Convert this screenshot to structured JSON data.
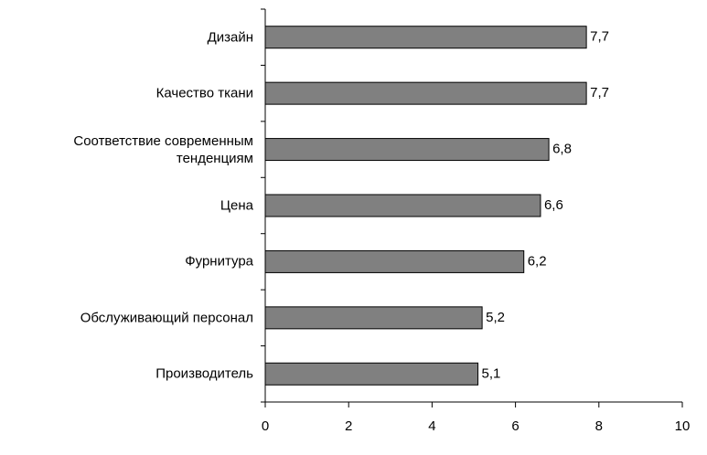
{
  "chart_data": {
    "type": "bar",
    "orientation": "horizontal",
    "categories": [
      "Дизайн",
      "Качество ткани",
      "Соответствие современным\nтенденциям",
      "Цена",
      "Фурнитура",
      "Обслуживающий персонал",
      "Производитель"
    ],
    "values": [
      7.7,
      7.7,
      6.8,
      6.6,
      6.2,
      5.2,
      5.1
    ],
    "value_labels": [
      "7,7",
      "7,7",
      "6,8",
      "6,6",
      "6,2",
      "5,2",
      "5,1"
    ],
    "color": "#808080",
    "xlim": [
      0,
      10
    ],
    "xticks": [
      0,
      2,
      4,
      6,
      8,
      10
    ],
    "grid": false
  }
}
